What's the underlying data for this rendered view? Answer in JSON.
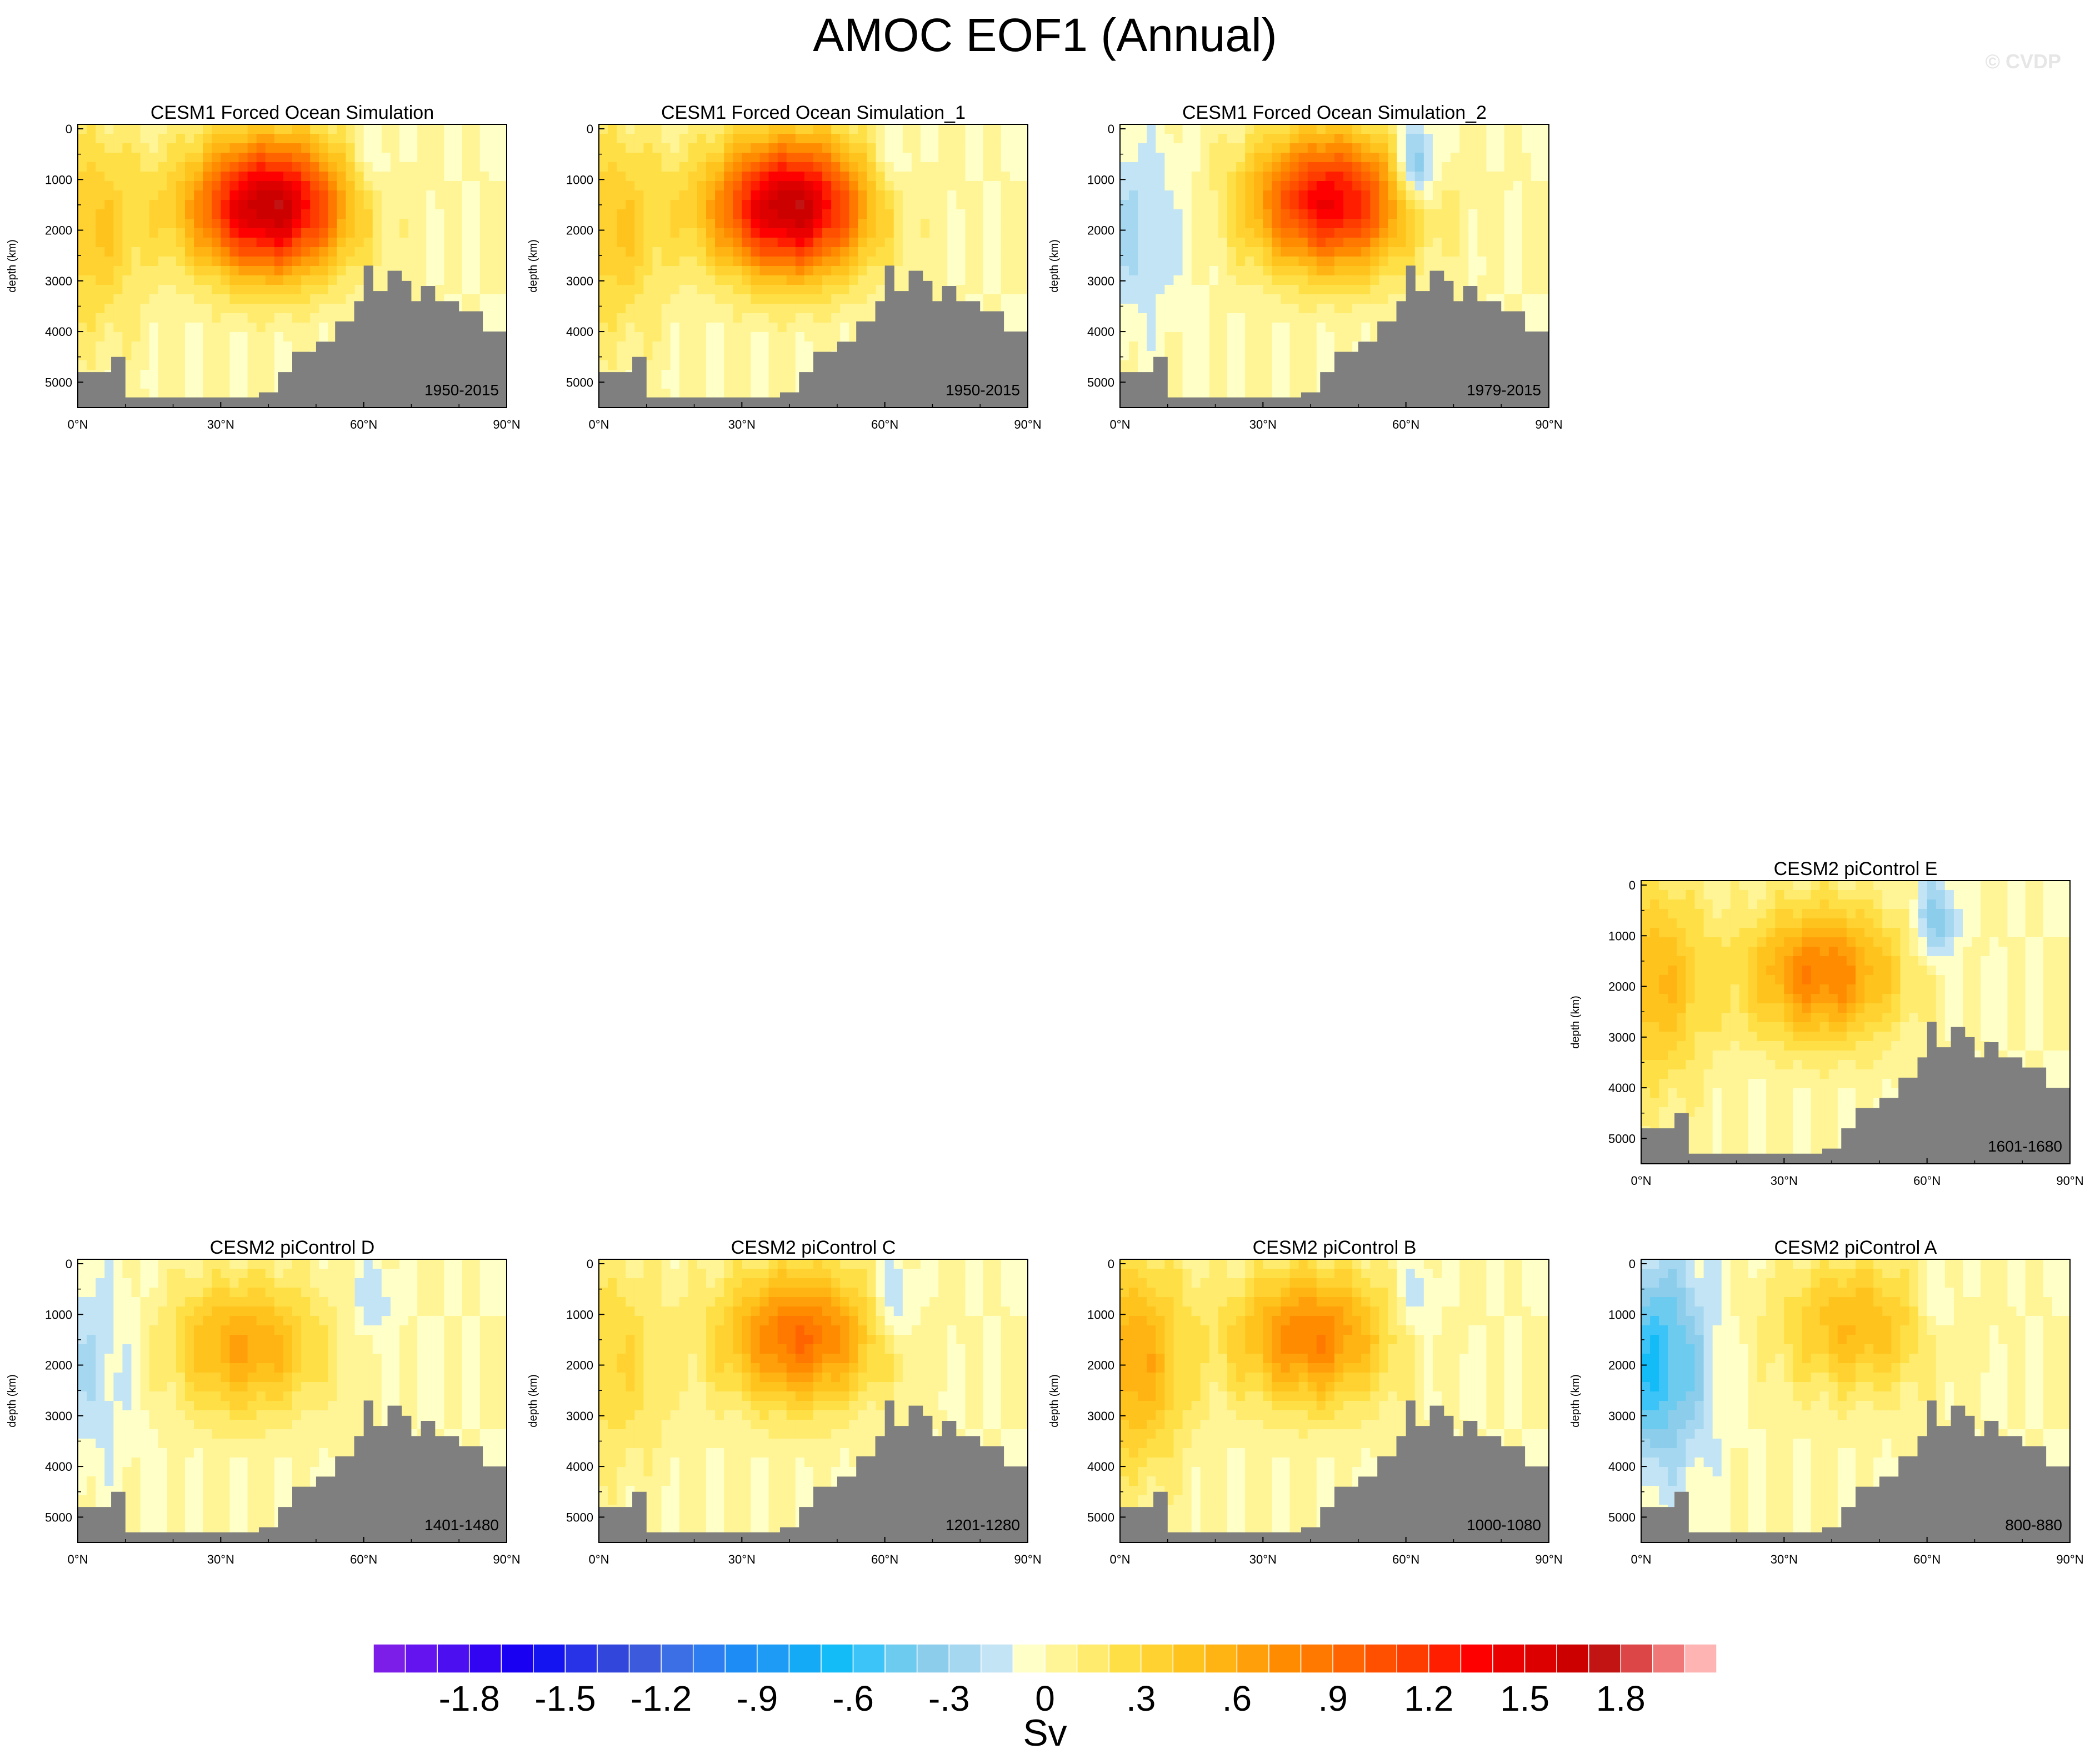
{
  "title": "AMOC EOF1 (Annual)",
  "watermark": "© CVDP",
  "chart_data": {
    "type": "heatmap",
    "title": "AMOC EOF1 (Annual)",
    "ylabel": "depth (km)",
    "yticks": [
      "0",
      "1000",
      "2000",
      "3000",
      "4000",
      "5000"
    ],
    "xticks": [
      "0°N",
      "30°N",
      "60°N",
      "90°N"
    ],
    "xlim": [
      0,
      90
    ],
    "ylim": [
      5500,
      0
    ],
    "colorbar": {
      "units": "Sv",
      "labels": [
        "-1.8",
        "-1.5",
        "-1.2",
        "-.9",
        "-.6",
        "-.3",
        "0",
        ".3",
        ".6",
        ".9",
        "1.2",
        "1.5",
        "1.8"
      ],
      "range": [
        -2.1,
        2.1
      ],
      "step": 0.1,
      "colors": [
        "#7d1ee8",
        "#6414ee",
        "#4b0ff0",
        "#3205f2",
        "#1a00f2",
        "#1414f0",
        "#2832e6",
        "#3246dc",
        "#3c5adc",
        "#3c6ee6",
        "#2d7df0",
        "#1e8cf5",
        "#1e9bf5",
        "#14aaf5",
        "#14bcf7",
        "#3cc3f7",
        "#6ecbf0",
        "#8ccdeb",
        "#a5d7f0",
        "#c3e4f5",
        "#ffffc8",
        "#fff596",
        "#ffeb6e",
        "#ffdf46",
        "#ffd232",
        "#ffc31e",
        "#ffb414",
        "#ffa00a",
        "#ff8c00",
        "#ff7800",
        "#ff6400",
        "#ff5000",
        "#ff3c00",
        "#ff1e00",
        "#ff0000",
        "#eb0000",
        "#dc0000",
        "#cd0000",
        "#c31414",
        "#dc4646",
        "#f07878",
        "#ffb4b4"
      ]
    },
    "panels": [
      {
        "title": "CESM1 Forced Ocean Simulation",
        "years": "1950-2015",
        "peak_lat": 40,
        "peak_depth": 1600,
        "amplitude": 1.7,
        "south_value": 0.4,
        "north_neg": -0.2
      },
      {
        "title": "CESM1 Forced Ocean Simulation_1",
        "years": "1950-2015",
        "peak_lat": 40,
        "peak_depth": 1600,
        "amplitude": 1.7,
        "south_value": 0.4,
        "north_neg": -0.2
      },
      {
        "title": "CESM1 Forced Ocean Simulation_2",
        "years": "1979-2015",
        "peak_lat": 44,
        "peak_depth": 1500,
        "amplitude": 1.4,
        "south_value": -0.2,
        "north_neg": -0.6
      },
      {
        "title": "CESM2 piControl E",
        "years": "1601-1680",
        "peak_lat": 38,
        "peak_depth": 1800,
        "amplitude": 0.8,
        "south_value": 0.5,
        "north_neg": -0.4
      },
      {
        "title": "CESM2 piControl D",
        "years": "1401-1480",
        "peak_lat": 35,
        "peak_depth": 1700,
        "amplitude": 0.6,
        "south_value": -0.2,
        "north_neg": -0.2
      },
      {
        "title": "CESM2 piControl C",
        "years": "1201-1280",
        "peak_lat": 42,
        "peak_depth": 1500,
        "amplitude": 0.9,
        "south_value": 0.3,
        "north_neg": -0.3
      },
      {
        "title": "CESM2 piControl B",
        "years": "1000-1080",
        "peak_lat": 40,
        "peak_depth": 1500,
        "amplitude": 0.8,
        "south_value": 0.6,
        "north_neg": -0.2
      },
      {
        "title": "CESM2 piControl A",
        "years": "800-880",
        "peak_lat": 45,
        "peak_depth": 1300,
        "amplitude": 0.5,
        "south_value": -0.6,
        "north_neg": -0.2
      }
    ],
    "bathymetry": {
      "lat": [
        0,
        5,
        7,
        10,
        30,
        38,
        42,
        45,
        50,
        54,
        58,
        60,
        62,
        65,
        68,
        70,
        72,
        75,
        80,
        85,
        90
      ],
      "depth": [
        4800,
        4800,
        4500,
        5300,
        5300,
        5200,
        4800,
        4400,
        4200,
        3800,
        3400,
        2700,
        3200,
        2800,
        3000,
        3400,
        3100,
        3400,
        3600,
        4000,
        4000
      ]
    }
  }
}
